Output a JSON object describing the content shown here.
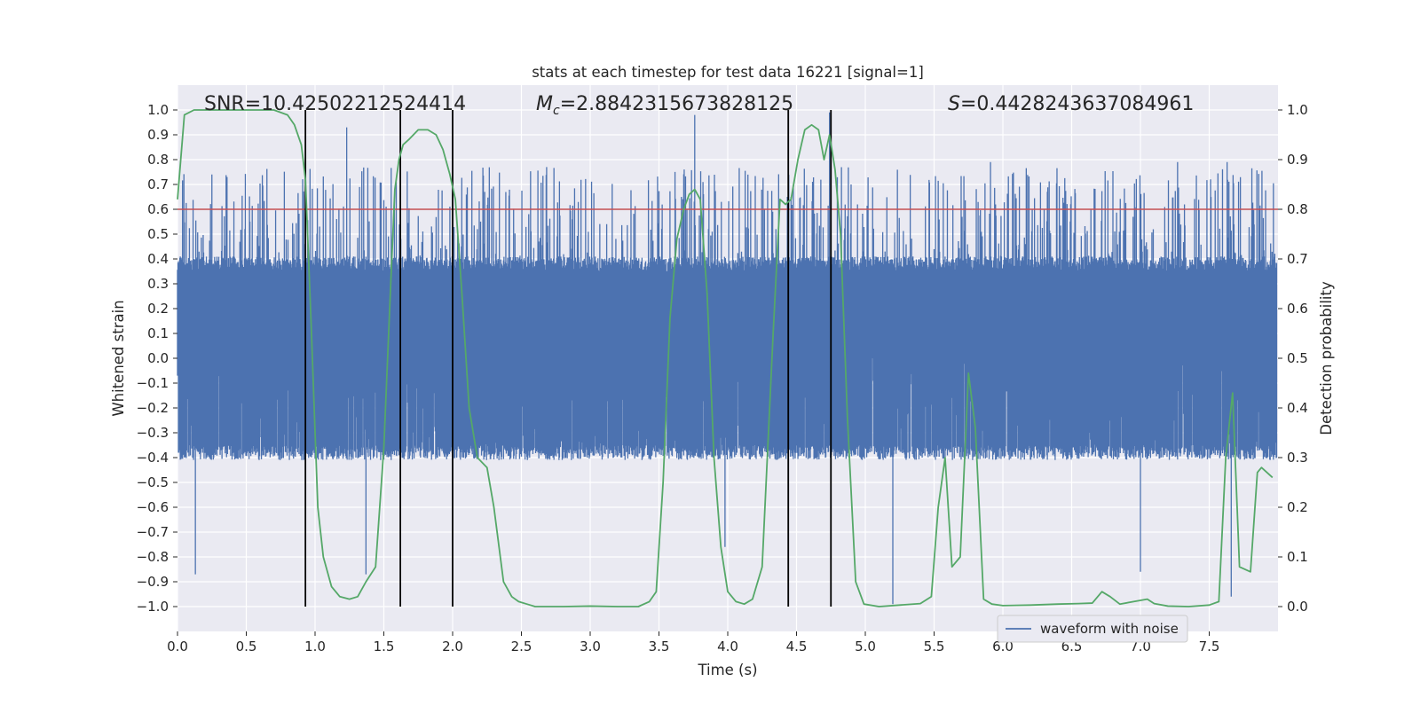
{
  "chart_data": {
    "type": "line",
    "title": "stats at each timestep for test data 16221 [signal=1]",
    "xlabel": "Time (s)",
    "ylabel": "Whitened strain",
    "y2label": "Detection probability",
    "xlim": [
      0.0,
      8.0
    ],
    "ylim": [
      -1.1,
      1.1
    ],
    "y2lim": [
      -0.05,
      1.05
    ],
    "x_ticks": [
      0.0,
      0.5,
      1.0,
      1.5,
      2.0,
      2.5,
      3.0,
      3.5,
      4.0,
      4.5,
      5.0,
      5.5,
      6.0,
      6.5,
      7.0,
      7.5
    ],
    "x_tick_labels": [
      "0.0",
      "0.5",
      "1.0",
      "1.5",
      "2.0",
      "2.5",
      "3.0",
      "3.5",
      "4.0",
      "4.5",
      "5.0",
      "5.5",
      "6.0",
      "6.5",
      "7.0",
      "7.5"
    ],
    "y_ticks": [
      1.0,
      0.9,
      0.8,
      0.7,
      0.6,
      0.5,
      0.4,
      0.3,
      0.2,
      0.1,
      0.0,
      -0.1,
      -0.2,
      -0.3,
      -0.4,
      -0.5,
      -0.6,
      -0.7,
      -0.8,
      -0.9,
      -1.0
    ],
    "y_tick_labels": [
      "1.0",
      "0.9",
      "0.8",
      "0.7",
      "0.6",
      "0.5",
      "0.4",
      "0.3",
      "0.2",
      "0.1",
      "0.0",
      "−0.1",
      "−0.2",
      "−0.3",
      "−0.4",
      "−0.5",
      "−0.6",
      "−0.7",
      "−0.8",
      "−0.9",
      "−1.0"
    ],
    "y2_ticks": [
      1.0,
      0.9,
      0.8,
      0.7,
      0.6,
      0.5,
      0.4,
      0.3,
      0.2,
      0.1,
      0.0
    ],
    "y2_tick_labels": [
      "1.0",
      "0.9",
      "0.8",
      "0.7",
      "0.6",
      "0.5",
      "0.4",
      "0.3",
      "0.2",
      "0.1",
      "0.0"
    ],
    "grid": true,
    "annotations": {
      "snr": "SNR=10.42502212524414",
      "mc_symbol": "M",
      "mc_subscript": "c",
      "mc_value": "=2.8842315673828125",
      "s_symbol": "S",
      "s_value": "=0.4428243637084961"
    },
    "threshold": {
      "value": 0.8,
      "color": "#c44e52"
    },
    "vertical_lines": {
      "x": [
        0.93,
        1.62,
        2.0,
        4.44,
        4.75
      ],
      "ymin": -1.0,
      "ymax": 1.0,
      "color": "#000000"
    },
    "series": [
      {
        "name": "waveform with noise",
        "axis": "left",
        "color": "#4c72b0",
        "style": "noise-band",
        "core_envelope": [
          -0.38,
          0.38
        ],
        "spike_range": [
          -0.9,
          0.9
        ],
        "peaks": [
          {
            "x": 1.23,
            "y": 0.93
          },
          {
            "x": 3.76,
            "y": 0.98
          },
          {
            "x": 4.74,
            "y": 0.99
          },
          {
            "x": 5.91,
            "y": 0.79
          },
          {
            "x": 7.27,
            "y": 0.79
          },
          {
            "x": 7.63,
            "y": 0.79
          },
          {
            "x": 5.2,
            "y": -0.99
          },
          {
            "x": 1.37,
            "y": -0.87
          },
          {
            "x": 0.13,
            "y": -0.87
          },
          {
            "x": 7.66,
            "y": -0.96
          },
          {
            "x": 3.98,
            "y": -0.76
          },
          {
            "x": 7.0,
            "y": -0.86
          }
        ]
      },
      {
        "name": "detection probability",
        "axis": "right",
        "color": "#55a868",
        "x": [
          0.0,
          0.05,
          0.12,
          0.2,
          0.4,
          0.6,
          0.7,
          0.8,
          0.85,
          0.9,
          0.93,
          0.97,
          1.02,
          1.06,
          1.12,
          1.18,
          1.25,
          1.31,
          1.37,
          1.44,
          1.5,
          1.55,
          1.58,
          1.61,
          1.64,
          1.68,
          1.75,
          1.82,
          1.88,
          1.93,
          1.98,
          2.02,
          2.07,
          2.12,
          2.18,
          2.25,
          2.3,
          2.37,
          2.43,
          2.48,
          2.54,
          2.6,
          2.7,
          2.8,
          3.0,
          3.2,
          3.35,
          3.43,
          3.48,
          3.53,
          3.58,
          3.63,
          3.68,
          3.72,
          3.76,
          3.8,
          3.85,
          3.9,
          3.95,
          4.0,
          4.06,
          4.12,
          4.18,
          4.25,
          4.33,
          4.38,
          4.42,
          4.46,
          4.51,
          4.56,
          4.61,
          4.66,
          4.7,
          4.74,
          4.78,
          4.82,
          4.87,
          4.93,
          4.99,
          5.1,
          5.25,
          5.4,
          5.48,
          5.53,
          5.58,
          5.63,
          5.69,
          5.75,
          5.8,
          5.86,
          5.92,
          6.0,
          6.2,
          6.4,
          6.55,
          6.65,
          6.72,
          6.78,
          6.85,
          6.95,
          7.05,
          7.1,
          7.2,
          7.35,
          7.5,
          7.57,
          7.62,
          7.67,
          7.72,
          7.8,
          7.85,
          7.88,
          7.92,
          7.96
        ],
        "values": [
          0.82,
          0.99,
          1.0,
          1.0,
          1.0,
          1.0,
          1.0,
          0.99,
          0.97,
          0.93,
          0.86,
          0.58,
          0.2,
          0.1,
          0.04,
          0.02,
          0.015,
          0.02,
          0.05,
          0.08,
          0.32,
          0.65,
          0.84,
          0.9,
          0.93,
          0.94,
          0.96,
          0.96,
          0.95,
          0.92,
          0.87,
          0.82,
          0.62,
          0.4,
          0.3,
          0.28,
          0.2,
          0.05,
          0.02,
          0.01,
          0.005,
          0.0,
          0.0,
          0.0,
          0.001,
          0.0,
          0.0,
          0.01,
          0.03,
          0.25,
          0.58,
          0.74,
          0.8,
          0.83,
          0.84,
          0.82,
          0.63,
          0.3,
          0.12,
          0.03,
          0.01,
          0.005,
          0.015,
          0.08,
          0.55,
          0.82,
          0.81,
          0.82,
          0.9,
          0.96,
          0.97,
          0.96,
          0.9,
          0.95,
          0.88,
          0.75,
          0.38,
          0.05,
          0.005,
          0.0,
          0.003,
          0.006,
          0.02,
          0.2,
          0.3,
          0.08,
          0.1,
          0.47,
          0.36,
          0.015,
          0.005,
          0.002,
          0.003,
          0.005,
          0.006,
          0.007,
          0.03,
          0.02,
          0.005,
          0.01,
          0.015,
          0.006,
          0.001,
          0.0,
          0.003,
          0.01,
          0.3,
          0.43,
          0.08,
          0.07,
          0.27,
          0.28,
          0.27,
          0.26
        ]
      }
    ],
    "legend": {
      "entries": [
        "waveform with noise"
      ],
      "placement": "lower-right"
    }
  }
}
